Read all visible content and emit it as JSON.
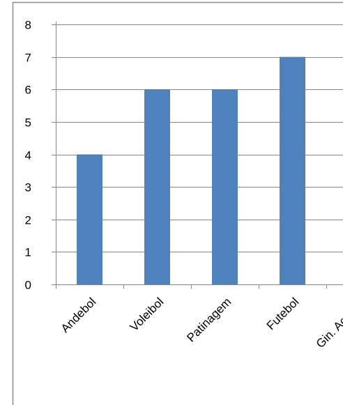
{
  "chart_data": {
    "type": "bar",
    "title": "",
    "xlabel": "",
    "ylabel": "",
    "categories": [
      "Andebol",
      "Voleibol",
      "Patinagem",
      "Futebol",
      "Gin. Acrobát"
    ],
    "values": [
      4,
      6,
      6,
      7,
      null
    ],
    "ylim": [
      0,
      8
    ],
    "yticks": [
      0,
      1,
      2,
      3,
      4,
      5,
      6,
      7,
      8
    ],
    "grid": "horizontal",
    "legend": "none",
    "colors": {
      "bar": "#4F81BD",
      "grid": "#868686",
      "axis": "#868686",
      "frame": "#8C8C8C",
      "text": "#000000"
    }
  }
}
